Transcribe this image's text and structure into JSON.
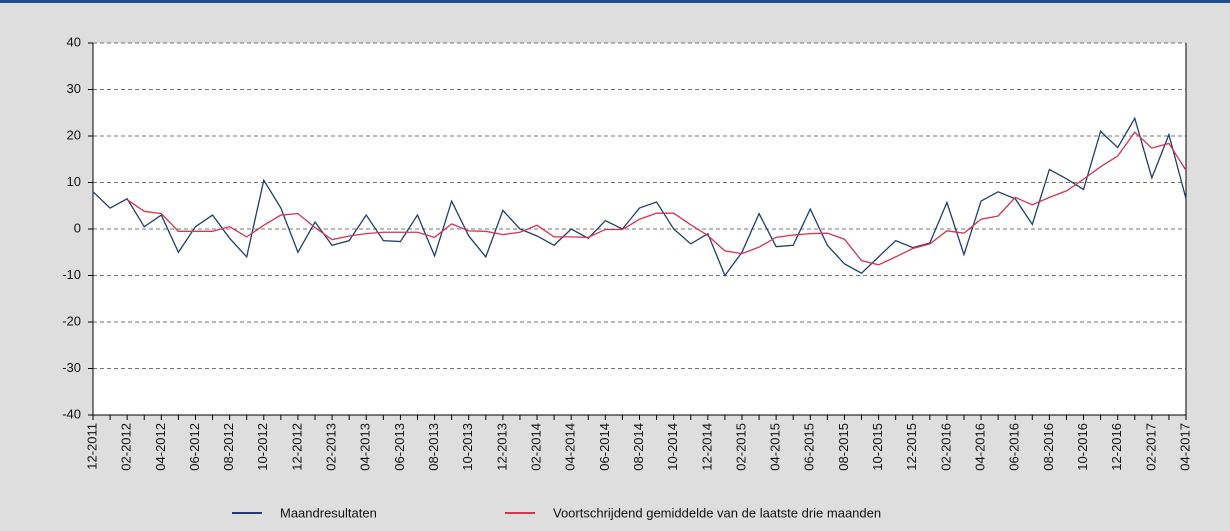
{
  "chart_data": {
    "type": "line",
    "categories": [
      "12-2011",
      null,
      "02-2012",
      null,
      "04-2012",
      null,
      "06-2012",
      null,
      "08-2012",
      null,
      "10-2012",
      null,
      "12-2012",
      null,
      "02-2013",
      null,
      "04-2013",
      null,
      "06-2013",
      null,
      "08-2013",
      null,
      "10-2013",
      null,
      "12-2013",
      null,
      "02-2014",
      null,
      "04-2014",
      null,
      "06-2014",
      null,
      "08-2014",
      null,
      "10-2014",
      null,
      "12-2014",
      null,
      "02-2015",
      null,
      "04-2015",
      null,
      "06-2015",
      null,
      "08-2015",
      null,
      "10-2015",
      null,
      "12-2015",
      null,
      "02-2016",
      null,
      "04-2016",
      null,
      "06-2016",
      null,
      "08-2016",
      null,
      "10-2016",
      null,
      "12-2016",
      null,
      "02-2017",
      null,
      "04-2017"
    ],
    "series": [
      {
        "name": "Maandresultaten",
        "color": "#1f3f73",
        "values": [
          8,
          4.5,
          6.5,
          0.5,
          3,
          -5,
          0.5,
          3,
          -2,
          -6,
          10.5,
          4.5,
          -5,
          1.5,
          -3.5,
          -2.5,
          3,
          -2.5,
          -2.7,
          3,
          -5.8,
          6,
          -1.5,
          -6,
          4,
          0,
          -1.5,
          -3.5,
          0,
          -2,
          1.8,
          0,
          4.5,
          5.8,
          0,
          -3.2,
          -1,
          -10,
          -5,
          3.3,
          -3.8,
          -3.5,
          4.3,
          -3.5,
          -7.5,
          -9.5,
          -6,
          -2.5,
          -4,
          -3,
          5.7,
          -5.5,
          6,
          8,
          6.5,
          1,
          12.8,
          10.8,
          8.5,
          21,
          17.5,
          23.8,
          11,
          20.3,
          6.5
        ]
      },
      {
        "name": "Voortschrijdend gemiddelde van de laatste drie maanden",
        "color": "#d8344e",
        "values": [
          null,
          null,
          6.3,
          3.8,
          3.3,
          -0.5,
          -0.5,
          -0.5,
          0.5,
          -1.7,
          0.8,
          3,
          3.3,
          0.3,
          -2.3,
          -1.5,
          -1,
          -0.7,
          -0.7,
          -0.7,
          -1.8,
          1.1,
          -0.4,
          -0.5,
          -1.2,
          -0.7,
          0.8,
          -1.7,
          -1.7,
          -1.8,
          -0.1,
          -0.1,
          2.1,
          3.4,
          3.4,
          0.9,
          -1.4,
          -4.7,
          -5.3,
          -3.9,
          -1.8,
          -1.3,
          -1,
          -0.9,
          -2.2,
          -6.8,
          -7.7,
          -6,
          -4.2,
          -3.2,
          -0.4,
          -0.9,
          2.1,
          2.8,
          6.8,
          5.2,
          6.8,
          8.2,
          10.7,
          13.4,
          15.7,
          20.8,
          17.4,
          18.4,
          12.6
        ]
      }
    ],
    "ylim": [
      -40,
      40
    ],
    "yticks": [
      -40,
      -30,
      -20,
      -10,
      0,
      10,
      20,
      30,
      40
    ],
    "grid": true
  }
}
